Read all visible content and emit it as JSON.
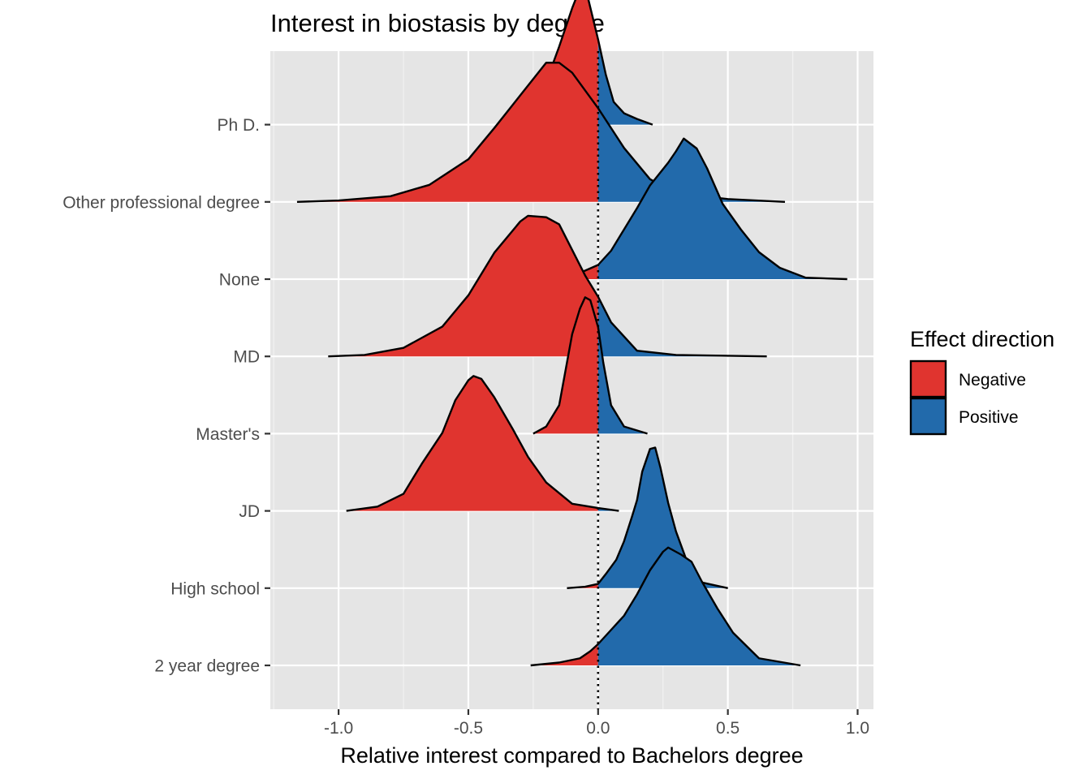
{
  "chart_data": {
    "type": "ridgeline",
    "title": "Interest in biostasis by degree",
    "xlabel": "Relative interest compared to Bachelors degree",
    "ylabel": "",
    "xlim": [
      -1.25,
      1.07
    ],
    "x_ticks": [
      -1.0,
      -0.5,
      0.0,
      0.5,
      1.0
    ],
    "x_tick_labels": [
      "-1.0",
      "-0.5",
      "0.0",
      "0.5",
      "1.0"
    ],
    "reference_line": {
      "x": 0.0,
      "style": "dotted"
    },
    "grid": true,
    "legend": {
      "title": "Effect direction",
      "placement": "right",
      "entries": [
        {
          "label": "Negative",
          "color": "#e0342f"
        },
        {
          "label": "Positive",
          "color": "#226aab"
        }
      ]
    },
    "categories": [
      "2 year degree",
      "High school",
      "JD",
      "Master's",
      "MD",
      "None",
      "Other professional degree",
      "Ph D."
    ],
    "series": [
      {
        "category": "2 year degree",
        "x": [
          -0.26,
          -0.15,
          -0.07,
          -0.03,
          0.0,
          0.05,
          0.1,
          0.15,
          0.2,
          0.25,
          0.27,
          0.32,
          0.36,
          0.4,
          0.46,
          0.52,
          0.62,
          0.78
        ],
        "height": [
          0.0,
          0.02,
          0.05,
          0.1,
          0.15,
          0.25,
          0.35,
          0.5,
          0.67,
          0.8,
          0.83,
          0.78,
          0.73,
          0.59,
          0.4,
          0.23,
          0.05,
          0.0
        ]
      },
      {
        "category": "High school",
        "x": [
          -0.12,
          -0.05,
          0.0,
          0.03,
          0.07,
          0.1,
          0.13,
          0.15,
          0.17,
          0.2,
          0.22,
          0.24,
          0.27,
          0.3,
          0.34,
          0.4,
          0.5
        ],
        "height": [
          0.0,
          0.01,
          0.03,
          0.1,
          0.2,
          0.33,
          0.5,
          0.62,
          0.82,
          0.98,
          0.99,
          0.85,
          0.6,
          0.4,
          0.2,
          0.04,
          0.0
        ]
      },
      {
        "category": "JD",
        "x": [
          -0.97,
          -0.85,
          -0.75,
          -0.68,
          -0.6,
          -0.55,
          -0.5,
          -0.48,
          -0.45,
          -0.4,
          -0.33,
          -0.27,
          -0.2,
          -0.1,
          0.0,
          0.08
        ],
        "height": [
          0.0,
          0.03,
          0.12,
          0.33,
          0.55,
          0.78,
          0.92,
          0.95,
          0.93,
          0.8,
          0.58,
          0.38,
          0.2,
          0.05,
          0.02,
          0.0
        ]
      },
      {
        "category": "Master's",
        "x": [
          -0.25,
          -0.2,
          -0.15,
          -0.12,
          -0.1,
          -0.07,
          -0.05,
          -0.03,
          0.0,
          0.02,
          0.05,
          0.1,
          0.19
        ],
        "height": [
          0.0,
          0.05,
          0.2,
          0.5,
          0.7,
          0.88,
          0.96,
          0.94,
          0.75,
          0.5,
          0.2,
          0.05,
          0.0
        ]
      },
      {
        "category": "MD",
        "x": [
          -1.04,
          -0.9,
          -0.75,
          -0.6,
          -0.5,
          -0.4,
          -0.3,
          -0.27,
          -0.2,
          -0.15,
          -0.1,
          -0.05,
          0.0,
          0.05,
          0.15,
          0.3,
          0.65
        ],
        "height": [
          0.0,
          0.01,
          0.06,
          0.21,
          0.43,
          0.73,
          0.95,
          0.99,
          0.98,
          0.93,
          0.75,
          0.57,
          0.42,
          0.24,
          0.04,
          0.01,
          0.0
        ]
      },
      {
        "category": "None",
        "x": [
          -0.3,
          -0.1,
          0.0,
          0.05,
          0.1,
          0.15,
          0.2,
          0.27,
          0.3,
          0.33,
          0.38,
          0.42,
          0.48,
          0.55,
          0.62,
          0.7,
          0.8,
          0.96
        ],
        "height": [
          0.0,
          0.02,
          0.1,
          0.2,
          0.35,
          0.5,
          0.66,
          0.82,
          0.9,
          0.99,
          0.92,
          0.78,
          0.53,
          0.35,
          0.19,
          0.08,
          0.01,
          0.0
        ]
      },
      {
        "category": "Other professional degree",
        "x": [
          -1.16,
          -1.0,
          -0.8,
          -0.65,
          -0.5,
          -0.4,
          -0.3,
          -0.2,
          -0.15,
          -0.1,
          0.0,
          0.1,
          0.2,
          0.3,
          0.5,
          0.72
        ],
        "height": [
          0.0,
          0.01,
          0.04,
          0.12,
          0.3,
          0.52,
          0.75,
          0.98,
          0.98,
          0.91,
          0.66,
          0.38,
          0.16,
          0.06,
          0.02,
          0.0
        ]
      },
      {
        "category": "Ph D.",
        "x": [
          -0.39,
          -0.28,
          -0.2,
          -0.15,
          -0.1,
          -0.07,
          -0.04,
          0.0,
          0.03,
          0.06,
          0.1,
          0.15,
          0.21
        ],
        "height": [
          0.0,
          0.02,
          0.3,
          0.55,
          0.82,
          0.96,
          0.9,
          0.6,
          0.35,
          0.16,
          0.08,
          0.04,
          0.0
        ]
      }
    ]
  }
}
